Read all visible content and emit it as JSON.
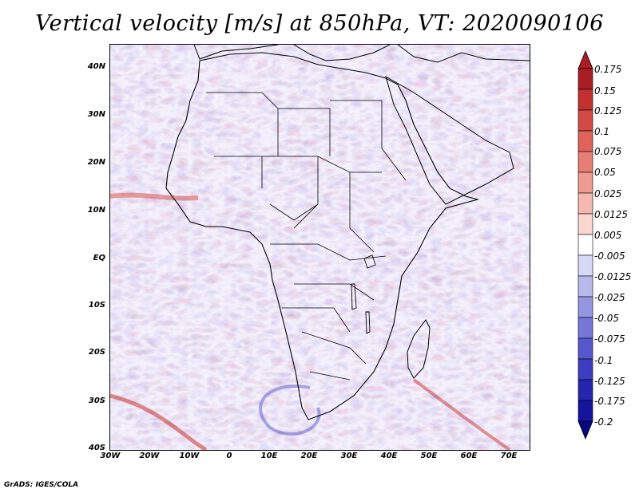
{
  "title": "Vertical velocity [m/s] at 850hPa, VT: 2020090106",
  "lat_labels": [
    "40N",
    "30N",
    "20N",
    "10N",
    "EQ",
    "10S",
    "20S",
    "30S",
    "40S"
  ],
  "lon_labels": [
    "30W",
    "20W",
    "10W",
    "0",
    "10E",
    "20E",
    "30E",
    "40E",
    "50E",
    "60E",
    "70E"
  ],
  "map_extent": {
    "lon": [
      -30,
      75
    ],
    "lat": [
      -40,
      45
    ]
  },
  "colorbar": {
    "levels": [
      "0.175",
      "0.15",
      "0.125",
      "0.1",
      "0.075",
      "0.05",
      "0.025",
      "0.0125",
      "0.005",
      "-0.005",
      "-0.0125",
      "-0.025",
      "-0.05",
      "-0.075",
      "-0.1",
      "-0.125",
      "-0.175",
      "-0.2"
    ],
    "colors": [
      "#a81e24",
      "#c0312f",
      "#d24a45",
      "#df625b",
      "#e77e74",
      "#ee9b90",
      "#f4b8af",
      "#f9d6d0",
      "#ffffff",
      "#d8d9f5",
      "#b7b8ec",
      "#9596e2",
      "#7677d8",
      "#5657cc",
      "#3c3dbf",
      "#2526ae",
      "#14159c",
      "#07087f"
    ]
  },
  "credit": "GrADS: IGES/COLA"
}
